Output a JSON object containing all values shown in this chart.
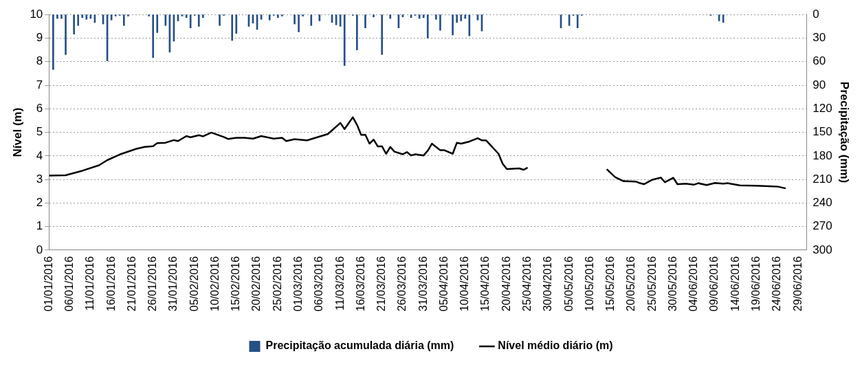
{
  "chart_data": {
    "type": "bar",
    "ylabel": "Nível (m)",
    "y2label": "Precipitação (mm)",
    "xlim": [
      "2016-01-01",
      "2016-07-01"
    ],
    "xticks": [
      {
        "value": "2016-01-01",
        "label": "01/01/2016"
      },
      {
        "value": "2016-01-06",
        "label": "06/01/2016"
      },
      {
        "value": "2016-01-11",
        "label": "11/01/2016"
      },
      {
        "value": "2016-01-16",
        "label": "16/01/2016"
      },
      {
        "value": "2016-01-21",
        "label": "21/01/2016"
      },
      {
        "value": "2016-01-26",
        "label": "26/01/2016"
      },
      {
        "value": "2016-01-31",
        "label": "31/01/2016"
      },
      {
        "value": "2016-02-05",
        "label": "05/02/2016"
      },
      {
        "value": "2016-02-10",
        "label": "10/02/2016"
      },
      {
        "value": "2016-02-15",
        "label": "15/02/2016"
      },
      {
        "value": "2016-02-20",
        "label": "20/02/2016"
      },
      {
        "value": "2016-02-25",
        "label": "25/02/2016"
      },
      {
        "value": "2016-03-01",
        "label": "01/03/2016"
      },
      {
        "value": "2016-03-06",
        "label": "06/03/2016"
      },
      {
        "value": "2016-03-11",
        "label": "11/03/2016"
      },
      {
        "value": "2016-03-16",
        "label": "16/03/2016"
      },
      {
        "value": "2016-03-21",
        "label": "21/03/2016"
      },
      {
        "value": "2016-03-26",
        "label": "26/03/2016"
      },
      {
        "value": "2016-03-31",
        "label": "31/03/2016"
      },
      {
        "value": "2016-04-05",
        "label": "05/04/2016"
      },
      {
        "value": "2016-04-10",
        "label": "10/04/2016"
      },
      {
        "value": "2016-04-15",
        "label": "15/04/2016"
      },
      {
        "value": "2016-04-20",
        "label": "20/04/2016"
      },
      {
        "value": "2016-04-25",
        "label": "25/04/2016"
      },
      {
        "value": "2016-04-30",
        "label": "30/04/2016"
      },
      {
        "value": "2016-05-05",
        "label": "05/05/2016"
      },
      {
        "value": "2016-05-10",
        "label": "10/05/2016"
      },
      {
        "value": "2016-05-15",
        "label": "15/05/2016"
      },
      {
        "value": "2016-05-20",
        "label": "20/05/2016"
      },
      {
        "value": "2016-05-25",
        "label": "25/05/2016"
      },
      {
        "value": "2016-05-30",
        "label": "30/05/2016"
      },
      {
        "value": "2016-06-04",
        "label": "04/06/2016"
      },
      {
        "value": "2016-06-09",
        "label": "09/06/2016"
      },
      {
        "value": "2016-06-14",
        "label": "14/06/2016"
      },
      {
        "value": "2016-06-19",
        "label": "19/06/2016"
      },
      {
        "value": "2016-06-24",
        "label": "24/06/2016"
      },
      {
        "value": "2016-06-29",
        "label": "29/06/2016"
      }
    ],
    "ylim": [
      0,
      10
    ],
    "yticks": [
      0,
      1,
      2,
      3,
      4,
      5,
      6,
      7,
      8,
      9,
      10
    ],
    "y2lim": [
      300,
      0
    ],
    "y2ticks": [
      0,
      30,
      60,
      90,
      120,
      150,
      180,
      210,
      240,
      270,
      300
    ],
    "grid": "y",
    "legend": "bottom",
    "series": [
      {
        "name": "Precipitação acumulada diária (mm)",
        "color": "#264f86",
        "axis": "y2",
        "x": [
          "2016-01-02",
          "2016-01-03",
          "2016-01-04",
          "2016-01-05",
          "2016-01-07",
          "2016-01-08",
          "2016-01-09",
          "2016-01-10",
          "2016-01-11",
          "2016-01-12",
          "2016-01-14",
          "2016-01-15",
          "2016-01-16",
          "2016-01-17",
          "2016-01-18",
          "2016-01-19",
          "2016-01-20",
          "2016-01-25",
          "2016-01-26",
          "2016-01-27",
          "2016-01-29",
          "2016-01-30",
          "2016-01-31",
          "2016-02-01",
          "2016-02-02",
          "2016-02-03",
          "2016-02-04",
          "2016-02-05",
          "2016-02-06",
          "2016-02-07",
          "2016-02-11",
          "2016-02-12",
          "2016-02-14",
          "2016-02-15",
          "2016-02-18",
          "2016-02-19",
          "2016-02-20",
          "2016-02-21",
          "2016-02-23",
          "2016-02-24",
          "2016-02-25",
          "2016-02-26",
          "2016-02-29",
          "2016-03-01",
          "2016-03-02",
          "2016-03-04",
          "2016-03-06",
          "2016-03-09",
          "2016-03-10",
          "2016-03-11",
          "2016-03-12",
          "2016-03-14",
          "2016-03-15",
          "2016-03-17",
          "2016-03-19",
          "2016-03-21",
          "2016-03-23",
          "2016-03-25",
          "2016-03-26",
          "2016-03-28",
          "2016-03-29",
          "2016-03-30",
          "2016-03-31",
          "2016-04-01",
          "2016-04-03",
          "2016-04-04",
          "2016-04-07",
          "2016-04-08",
          "2016-04-09",
          "2016-04-10",
          "2016-04-11",
          "2016-04-13",
          "2016-04-14",
          "2016-05-03",
          "2016-05-05",
          "2016-05-06",
          "2016-05-07",
          "2016-05-08",
          "2016-06-08",
          "2016-06-10",
          "2016-06-11"
        ],
        "values": [
          70,
          5,
          5,
          51,
          25,
          14,
          4,
          6,
          5,
          10,
          12,
          59,
          7,
          2,
          1,
          14,
          2,
          2,
          55,
          23,
          14,
          48,
          34,
          8,
          2,
          4,
          17,
          1,
          15,
          4,
          14,
          1,
          33,
          24,
          15,
          11,
          19,
          6,
          7,
          1,
          4,
          2,
          12,
          22,
          2,
          14,
          8,
          10,
          13,
          15,
          65,
          1,
          45,
          17,
          3,
          51,
          5,
          17,
          3,
          4,
          1,
          5,
          4,
          30,
          6,
          20,
          26,
          10,
          8,
          5,
          27,
          7,
          21,
          17,
          14,
          1,
          17,
          1,
          1,
          8,
          10
        ]
      },
      {
        "type": "line",
        "name": "Nível médio diário (m)",
        "color": "#000000",
        "axis": "y",
        "x": [
          "2016-01-01",
          "2016-01-05",
          "2016-01-09",
          "2016-01-13",
          "2016-01-15",
          "2016-01-18",
          "2016-01-22",
          "2016-01-24",
          "2016-01-26",
          "2016-01-27",
          "2016-01-29",
          "2016-01-31",
          "2016-02-01",
          "2016-02-03",
          "2016-02-04",
          "2016-02-06",
          "2016-02-07",
          "2016-02-09",
          "2016-02-12",
          "2016-02-13",
          "2016-02-15",
          "2016-02-17",
          "2016-02-19",
          "2016-02-21",
          "2016-02-24",
          "2016-02-26",
          "2016-02-27",
          "2016-02-29",
          "2016-03-03",
          "2016-03-08",
          "2016-03-11",
          "2016-03-12",
          "2016-03-14",
          "2016-03-15",
          "2016-03-16",
          "2016-03-17",
          "2016-03-18",
          "2016-03-19",
          "2016-03-20",
          "2016-03-21",
          "2016-03-22",
          "2016-03-23",
          "2016-03-24",
          "2016-03-26",
          "2016-03-27",
          "2016-03-28",
          "2016-03-29",
          "2016-03-31",
          "2016-04-01",
          "2016-04-02",
          "2016-04-04",
          "2016-04-05",
          "2016-04-07",
          "2016-04-08",
          "2016-04-09",
          "2016-04-11",
          "2016-04-13",
          "2016-04-14",
          "2016-04-15",
          "2016-04-18",
          "2016-04-19",
          "2016-04-20",
          "2016-04-23",
          "2016-04-24",
          "2016-04-25",
          "2016-05-01",
          "2016-05-14",
          "2016-05-16",
          "2016-05-18",
          "2016-05-21",
          "2016-05-22",
          "2016-05-23",
          "2016-05-25",
          "2016-05-27",
          "2016-05-28",
          "2016-05-30",
          "2016-05-31",
          "2016-06-02",
          "2016-06-04",
          "2016-06-05",
          "2016-06-07",
          "2016-06-09",
          "2016-06-11",
          "2016-06-12",
          "2016-06-15",
          "2016-06-19",
          "2016-06-24",
          "2016-06-26"
        ],
        "values": [
          3.16,
          3.18,
          3.37,
          3.6,
          3.82,
          4.06,
          4.3,
          4.38,
          4.41,
          4.54,
          4.56,
          4.67,
          4.63,
          4.84,
          4.79,
          4.88,
          4.83,
          4.99,
          4.8,
          4.72,
          4.77,
          4.77,
          4.73,
          4.84,
          4.73,
          4.77,
          4.63,
          4.71,
          4.66,
          4.93,
          5.4,
          5.14,
          5.64,
          5.32,
          4.89,
          4.9,
          4.52,
          4.69,
          4.4,
          4.41,
          4.09,
          4.38,
          4.18,
          4.07,
          4.16,
          4.02,
          4.07,
          4.02,
          4.22,
          4.52,
          4.24,
          4.24,
          4.09,
          4.56,
          4.52,
          4.61,
          4.75,
          4.66,
          4.66,
          4.09,
          3.67,
          3.44,
          3.47,
          3.41,
          3.5,
          null,
          3.44,
          3.1,
          2.93,
          2.91,
          2.84,
          2.8,
          2.99,
          3.08,
          2.88,
          3.07,
          2.8,
          2.82,
          2.78,
          2.84,
          2.76,
          2.85,
          2.82,
          2.84,
          2.75,
          2.73,
          2.7,
          2.62
        ]
      }
    ]
  }
}
